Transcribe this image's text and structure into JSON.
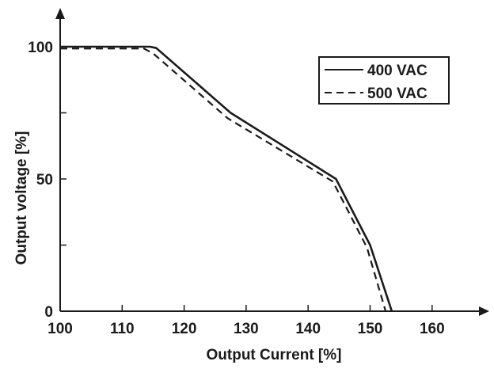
{
  "chart_data": {
    "type": "line",
    "title": "",
    "xlabel": "Output Current [%]",
    "ylabel": "Output voltage [%]",
    "xlim": [
      100,
      160
    ],
    "ylim": [
      0,
      100
    ],
    "x_ticks": [
      "100",
      "110",
      "120",
      "130",
      "140",
      "150",
      "160"
    ],
    "y_tick_labels": [
      {
        "value": 0,
        "label": "0"
      },
      {
        "value": 50,
        "label": "50"
      },
      {
        "value": 100,
        "label": "100"
      }
    ],
    "y_minor_ticks": [
      25,
      75
    ],
    "grid": false,
    "legend": "top-right",
    "series": [
      {
        "name": "400 VAC",
        "style": "solid",
        "x": [
          100,
          114.5,
          115.5,
          127.5,
          144.5,
          150,
          153.5
        ],
        "y": [
          100,
          100,
          99.5,
          75,
          50,
          25,
          0
        ]
      },
      {
        "name": "500 VAC",
        "style": "dashed",
        "x": [
          100,
          113.5,
          115,
          127,
          144,
          149.5,
          152.5
        ],
        "y": [
          99.3,
          99.3,
          97.5,
          73,
          49,
          24,
          0
        ]
      }
    ],
    "colors": {
      "line": "#1a1a1a"
    }
  }
}
